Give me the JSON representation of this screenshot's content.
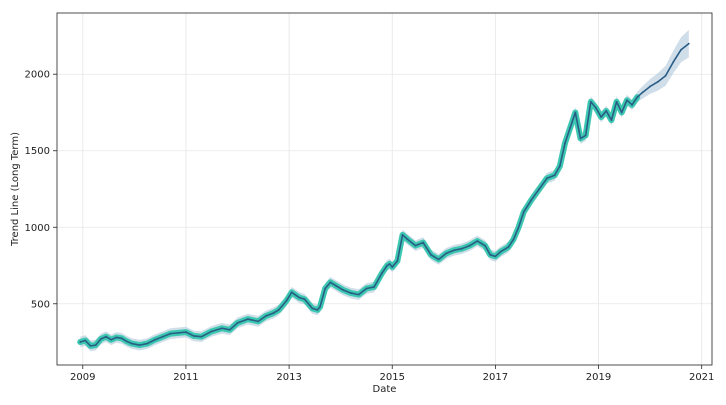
{
  "chart_data": {
    "type": "line",
    "title": "",
    "xlabel": "Date",
    "ylabel": "Trend Line (Long Term)",
    "xlim": [
      2008.5,
      2021.2
    ],
    "ylim": [
      100,
      2400
    ],
    "x_ticks": [
      2009,
      2011,
      2013,
      2015,
      2017,
      2019,
      2021
    ],
    "x_tick_labels": [
      "2009",
      "2011",
      "2013",
      "2015",
      "2017",
      "2019",
      "2021"
    ],
    "y_ticks": [
      500,
      1000,
      1500,
      2000
    ],
    "y_tick_labels": [
      "500",
      "1000",
      "1500",
      "2000"
    ],
    "grid": true,
    "colors": {
      "trend_line": "#2a5d86",
      "observed_band": "#3cc8b0",
      "uncertainty_band": "#a9c3d9"
    },
    "series": [
      {
        "role": "trend",
        "x": [
          2008.95,
          2009.05,
          2009.15,
          2009.25,
          2009.35,
          2009.45,
          2009.55,
          2009.65,
          2009.75,
          2009.85,
          2009.95,
          2010.1,
          2010.25,
          2010.4,
          2010.55,
          2010.7,
          2010.85,
          2011.0,
          2011.15,
          2011.3,
          2011.5,
          2011.7,
          2011.85,
          2012.0,
          2012.2,
          2012.4,
          2012.55,
          2012.7,
          2012.8,
          2012.95,
          2013.05,
          2013.2,
          2013.3,
          2013.45,
          2013.55,
          2013.6,
          2013.7,
          2013.8,
          2013.9,
          2014.05,
          2014.2,
          2014.35,
          2014.5,
          2014.65,
          2014.8,
          2014.9,
          2014.95,
          2015.0,
          2015.1,
          2015.2,
          2015.3,
          2015.45,
          2015.6,
          2015.75,
          2015.9,
          2016.05,
          2016.2,
          2016.35,
          2016.5,
          2016.65,
          2016.8,
          2016.9,
          2017.0,
          2017.1,
          2017.25,
          2017.35,
          2017.45,
          2017.55,
          2017.7,
          2017.85,
          2018.0,
          2018.15,
          2018.25,
          2018.35,
          2018.45,
          2018.55,
          2018.65,
          2018.75,
          2018.85,
          2018.95,
          2019.05,
          2019.15,
          2019.25,
          2019.35,
          2019.45,
          2019.55,
          2019.65,
          2019.75,
          2019.85,
          2020.0,
          2020.15,
          2020.3,
          2020.45,
          2020.6,
          2020.75
        ],
        "y": [
          250,
          260,
          225,
          230,
          270,
          285,
          265,
          280,
          275,
          255,
          240,
          230,
          240,
          265,
          285,
          305,
          310,
          315,
          290,
          285,
          320,
          340,
          330,
          375,
          400,
          385,
          420,
          440,
          460,
          520,
          575,
          540,
          530,
          470,
          460,
          480,
          600,
          640,
          620,
          590,
          570,
          560,
          600,
          610,
          700,
          750,
          760,
          740,
          780,
          950,
          920,
          880,
          900,
          820,
          790,
          830,
          850,
          860,
          880,
          910,
          880,
          820,
          810,
          840,
          870,
          920,
          1000,
          1100,
          1180,
          1250,
          1320,
          1340,
          1400,
          1550,
          1650,
          1750,
          1580,
          1600,
          1820,
          1780,
          1720,
          1760,
          1700,
          1820,
          1750,
          1830,
          1800,
          1850,
          1880,
          1920,
          1950,
          1990,
          2080,
          2160,
          2200
        ]
      }
    ]
  }
}
